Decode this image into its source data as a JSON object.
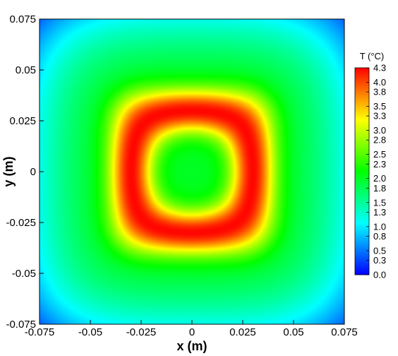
{
  "chart_data": {
    "type": "heatmap",
    "title": "",
    "xlabel": "x (m)",
    "ylabel": "y (m)",
    "xlim": [
      -0.075,
      0.075
    ],
    "ylim": [
      -0.075,
      0.075
    ],
    "x_ticks": [
      "-0.075",
      "-0.05",
      "-0.025",
      "0",
      "0.025",
      "0.05",
      "0.075"
    ],
    "x_tick_values": [
      -0.075,
      -0.05,
      -0.025,
      0,
      0.025,
      0.05,
      0.075
    ],
    "y_ticks": [
      "0.075",
      "0.05",
      "0.025",
      "0",
      "-0.025",
      "-0.05",
      "-0.075"
    ],
    "y_tick_values": [
      0.075,
      0.05,
      0.025,
      0,
      -0.025,
      -0.05,
      -0.075
    ],
    "colorbar": {
      "title": "T (°C)",
      "range": [
        0.0,
        4.3
      ],
      "labels": [
        "4.3",
        "4.0",
        "3.8",
        "3.5",
        "3.3",
        "3.0",
        "2.8",
        "2.5",
        "2.3",
        "2.0",
        "1.8",
        "1.5",
        "1.3",
        "1.0",
        "0.8",
        "0.5",
        "0.3",
        "0.0"
      ],
      "label_values": [
        4.3,
        4.0,
        3.8,
        3.5,
        3.3,
        3.0,
        2.8,
        2.5,
        2.3,
        2.0,
        1.8,
        1.5,
        1.3,
        1.0,
        0.8,
        0.5,
        0.3,
        0.0
      ],
      "colormap": [
        "#0000ff",
        "#00ffff",
        "#00ff00",
        "#ffff00",
        "#ff0000"
      ]
    },
    "field_description": {
      "center_value": 2.0,
      "ring_peak_value": 4.3,
      "ring_radius_m": 0.03,
      "corner_value": 0.0,
      "grid": false
    }
  }
}
